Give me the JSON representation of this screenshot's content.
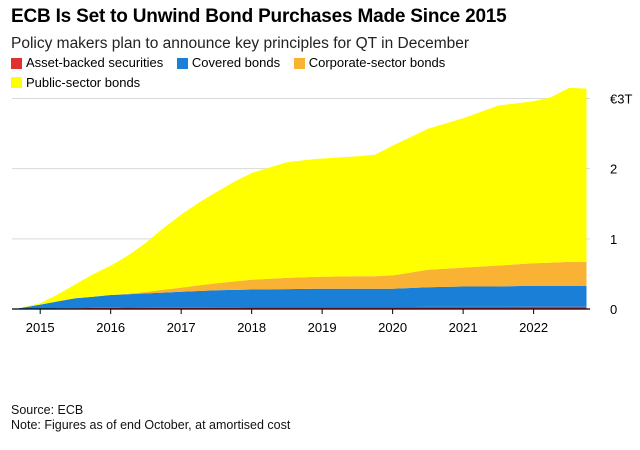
{
  "title": "ECB Is Set to Unwind Bond Purchases Made Since 2015",
  "subtitle": "Policy makers plan to announce key principles for QT in December",
  "legend": [
    {
      "label": "Asset-backed securities",
      "color": "#e03030"
    },
    {
      "label": "Covered bonds",
      "color": "#1a7fd6"
    },
    {
      "label": "Corporate-sector bonds",
      "color": "#f9b233"
    },
    {
      "label": "Public-sector bonds",
      "color": "#ffff00"
    }
  ],
  "source": "Source: ECB",
  "note": "Note: Figures as of end October, at amortised cost",
  "chart_data": {
    "type": "area",
    "stacked": true,
    "x": [
      2014.7,
      2015.0,
      2015.25,
      2015.5,
      2015.75,
      2016.0,
      2016.25,
      2016.5,
      2016.75,
      2017.0,
      2017.25,
      2017.5,
      2017.75,
      2018.0,
      2018.5,
      2018.9,
      2019.5,
      2019.75,
      2020.0,
      2020.25,
      2020.5,
      2021.0,
      2021.5,
      2022.0,
      2022.25,
      2022.5,
      2022.75
    ],
    "series": [
      {
        "name": "Asset-backed securities",
        "color": "#e03030",
        "values": [
          0,
          0.003,
          0.008,
          0.012,
          0.016,
          0.019,
          0.021,
          0.023,
          0.024,
          0.025,
          0.026,
          0.027,
          0.027,
          0.028,
          0.028,
          0.028,
          0.028,
          0.028,
          0.029,
          0.029,
          0.03,
          0.03,
          0.03,
          0.031,
          0.031,
          0.031,
          0.031
        ]
      },
      {
        "name": "Covered bonds",
        "color": "#1a7fd6",
        "values": [
          0.01,
          0.06,
          0.1,
          0.14,
          0.16,
          0.18,
          0.19,
          0.2,
          0.21,
          0.22,
          0.23,
          0.24,
          0.245,
          0.25,
          0.255,
          0.26,
          0.26,
          0.26,
          0.26,
          0.27,
          0.28,
          0.29,
          0.29,
          0.3,
          0.3,
          0.3,
          0.3
        ]
      },
      {
        "name": "Corporate-sector bonds",
        "color": "#f9b233",
        "values": [
          0,
          0,
          0,
          0,
          0,
          0,
          0.005,
          0.02,
          0.04,
          0.06,
          0.08,
          0.1,
          0.12,
          0.14,
          0.16,
          0.17,
          0.18,
          0.18,
          0.19,
          0.22,
          0.25,
          0.27,
          0.3,
          0.32,
          0.33,
          0.34,
          0.34
        ]
      },
      {
        "name": "Public-sector bonds",
        "color": "#ffff00",
        "values": [
          0,
          0.02,
          0.1,
          0.2,
          0.32,
          0.42,
          0.55,
          0.7,
          0.88,
          1.04,
          1.18,
          1.3,
          1.42,
          1.52,
          1.65,
          1.68,
          1.71,
          1.73,
          1.85,
          1.93,
          2.01,
          2.13,
          2.28,
          2.31,
          2.36,
          2.48,
          2.47
        ]
      }
    ],
    "ylim": [
      0,
      3.15
    ],
    "yticks": [
      0,
      1,
      2,
      3
    ],
    "ytick_labels": [
      "0",
      "1",
      "2",
      "€3T"
    ],
    "xlim": [
      2014.6,
      2022.8
    ],
    "xticks": [
      2015,
      2016,
      2017,
      2018,
      2019,
      2020,
      2021,
      2022
    ],
    "xtick_labels": [
      "2015",
      "2016",
      "2017",
      "2018",
      "2019",
      "2020",
      "2021",
      "2022"
    ],
    "grid": true,
    "legend_position": "top-left"
  }
}
